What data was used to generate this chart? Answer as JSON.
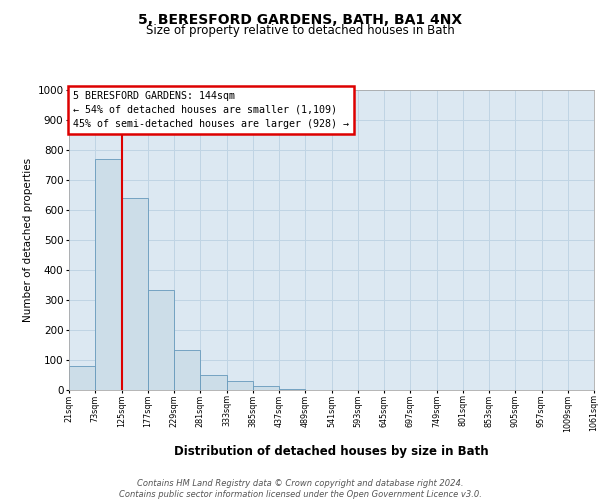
{
  "title": "5, BERESFORD GARDENS, BATH, BA1 4NX",
  "subtitle": "Size of property relative to detached houses in Bath",
  "xlabel": "Distribution of detached houses by size in Bath",
  "ylabel": "Number of detached properties",
  "bins": [
    "21sqm",
    "73sqm",
    "125sqm",
    "177sqm",
    "229sqm",
    "281sqm",
    "333sqm",
    "385sqm",
    "437sqm",
    "489sqm",
    "541sqm",
    "593sqm",
    "645sqm",
    "697sqm",
    "749sqm",
    "801sqm",
    "853sqm",
    "905sqm",
    "957sqm",
    "1009sqm",
    "1061sqm"
  ],
  "values": [
    80,
    770,
    640,
    335,
    135,
    50,
    30,
    15,
    5,
    0,
    0,
    0,
    0,
    0,
    0,
    0,
    0,
    0,
    0,
    0
  ],
  "bar_color": "#ccdde8",
  "bar_edge_color": "#6699bb",
  "vline_x": 2.0,
  "vline_color": "#dd0000",
  "annotation_text": "5 BERESFORD GARDENS: 144sqm\n← 54% of detached houses are smaller (1,109)\n45% of semi-detached houses are larger (928) →",
  "annotation_box_facecolor": "#ffffff",
  "annotation_box_edgecolor": "#dd0000",
  "grid_color": "#c0d4e4",
  "axes_bg_color": "#dce8f2",
  "footer_line1": "Contains HM Land Registry data © Crown copyright and database right 2024.",
  "footer_line2": "Contains public sector information licensed under the Open Government Licence v3.0.",
  "ylim_max": 1000,
  "yticks": [
    0,
    100,
    200,
    300,
    400,
    500,
    600,
    700,
    800,
    900,
    1000
  ]
}
